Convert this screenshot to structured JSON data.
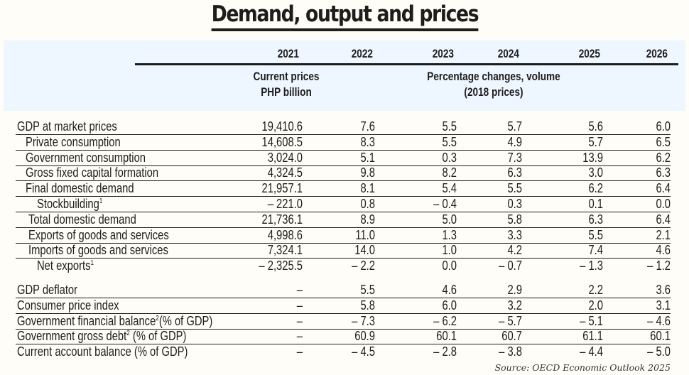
{
  "title": "Demand, output and prices",
  "header": {
    "years": [
      "2021",
      "2022",
      "2023",
      "2024",
      "2025",
      "2026"
    ],
    "sub_left_line1": "Current prices",
    "sub_left_line2": "PHP billion",
    "sub_right_line1": "Percentage changes, volume",
    "sub_right_line2": "(2018 prices)"
  },
  "colors": {
    "header_band": "#eef6ff",
    "text": "#1d1d1b",
    "background": "#fefdf8"
  },
  "rows": [
    {
      "label": "GDP at market prices",
      "indent": 0,
      "values": [
        "19,410.6",
        "7.6",
        "5.5",
        "5.7",
        "5.6",
        "6.0"
      ]
    },
    {
      "label": "Private consumption",
      "indent": 1,
      "values": [
        "14,608.5",
        "8.3",
        "5.5",
        "4.9",
        "5.7",
        "6.5"
      ]
    },
    {
      "label": "Government consumption",
      "indent": 1,
      "values": [
        "3,024.0",
        "5.1",
        "0.3",
        "7.3",
        "13.9",
        "6.2"
      ]
    },
    {
      "label": "Gross fixed capital formation",
      "indent": 1,
      "values": [
        "4,324.5",
        "9.8",
        "8.2",
        "6.3",
        "3.0",
        "6.3"
      ]
    },
    {
      "label": "Final domestic demand",
      "indent": 1,
      "values": [
        "21,957.1",
        "8.1",
        "5.4",
        "5.5",
        "6.2",
        "6.4"
      ]
    },
    {
      "label": "Stockbuilding",
      "sup": "1",
      "indent": 2,
      "values": [
        "– 221.0",
        "0.8",
        "– 0.4",
        "0.3",
        "0.1",
        "0.0"
      ]
    },
    {
      "label": "Total domestic demand",
      "indent": 1.3,
      "values": [
        "21,736.1",
        "8.9",
        "5.0",
        "5.8",
        "6.3",
        "6.4"
      ]
    },
    {
      "label": "Exports of goods and services",
      "indent": 1.3,
      "values": [
        "4,998.6",
        "11.0",
        "1.3",
        "3.3",
        "5.5",
        "2.1"
      ]
    },
    {
      "label": "Imports of goods and services",
      "indent": 1.3,
      "values": [
        "7,324.1",
        "14.0",
        "1.0",
        "4.2",
        "7.4",
        "4.6"
      ]
    },
    {
      "label": "Net exports",
      "sup": "1",
      "indent": 2,
      "values": [
        "– 2,325.5",
        "– 2.2",
        "0.0",
        "– 0.7",
        "– 1.3",
        "– 1.2"
      ]
    }
  ],
  "rows2": [
    {
      "label": "GDP deflator",
      "values": [
        "–",
        "5.5",
        "4.6",
        "2.9",
        "2.2",
        "3.6"
      ]
    },
    {
      "label": "Consumer price index",
      "values": [
        "–",
        "5.8",
        "6.0",
        "3.2",
        "2.0",
        "3.1"
      ]
    },
    {
      "label": "Government financial balance",
      "sup": "2",
      "suffix": "(% of GDP)",
      "values": [
        "–",
        "– 7.3",
        "– 6.2",
        "– 5.7",
        "– 5.1",
        "– 4.6"
      ]
    },
    {
      "label": "Government gross debt",
      "sup": "2",
      "suffix": " (% of GDP)",
      "values": [
        "–",
        "60.9",
        "60.1",
        "60.7",
        "61.1",
        "60.1"
      ]
    },
    {
      "label": "Current account balance (% of GDP)",
      "values": [
        "–",
        "– 4.5",
        "– 2.8",
        "– 3.8",
        "– 4.4",
        "– 5.0"
      ]
    }
  ],
  "source": "Source: OECD Economic Outlook 2025"
}
